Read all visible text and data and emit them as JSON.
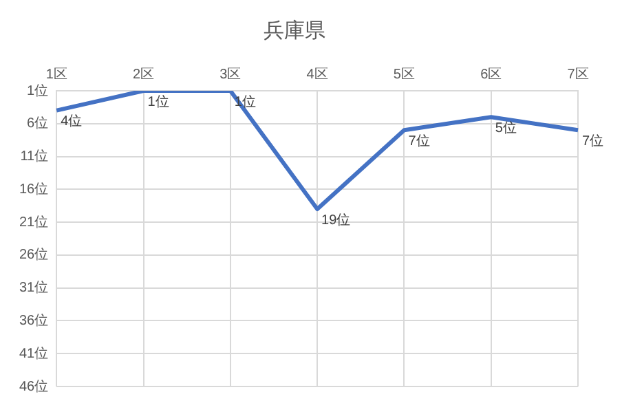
{
  "chart_data": {
    "type": "line",
    "title": "兵庫県",
    "categories": [
      "1区",
      "2区",
      "3区",
      "4区",
      "5区",
      "6区",
      "7区"
    ],
    "series": [
      {
        "color": "#4472c4",
        "values": [
          4,
          1,
          1,
          19,
          7,
          5,
          7
        ],
        "value_labels": [
          "4位",
          "1位",
          "1位",
          "19位",
          "7位",
          "5位",
          "7位"
        ]
      }
    ],
    "ylim": [
      46,
      1
    ],
    "yticks": [
      {
        "value": 1,
        "label": "1位"
      },
      {
        "value": 6,
        "label": "6位"
      },
      {
        "value": 11,
        "label": "11位"
      },
      {
        "value": 16,
        "label": "16位"
      },
      {
        "value": 21,
        "label": "21位"
      },
      {
        "value": 26,
        "label": "26位"
      },
      {
        "value": 31,
        "label": "31位"
      },
      {
        "value": 36,
        "label": "36位"
      },
      {
        "value": 41,
        "label": "41位"
      },
      {
        "value": 46,
        "label": "46位"
      }
    ],
    "grid": true,
    "legend": false,
    "marker": "none",
    "line_style": "solid"
  }
}
